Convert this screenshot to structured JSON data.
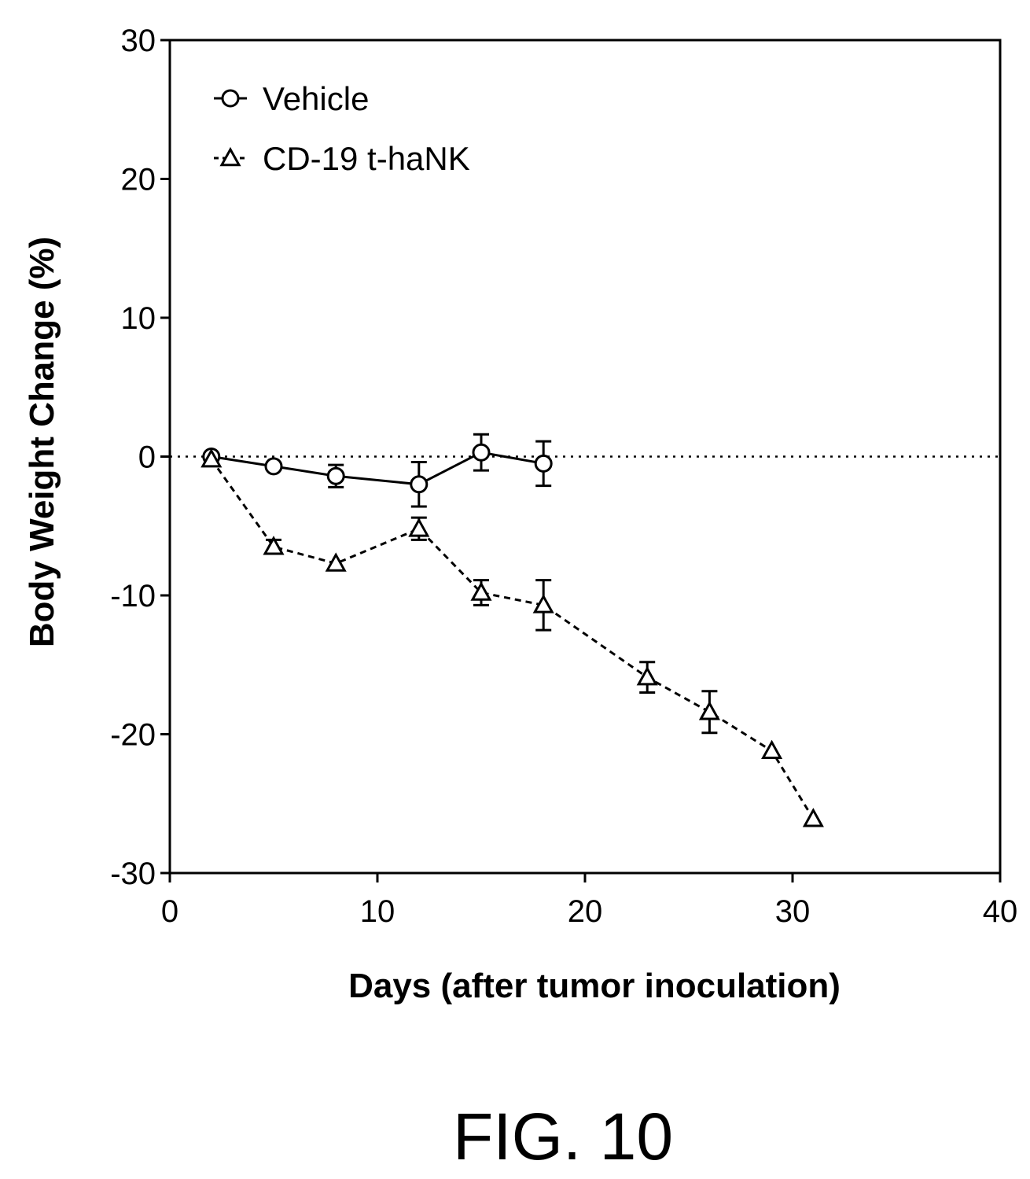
{
  "figure_caption": "FIG. 10",
  "chart_data": {
    "type": "line",
    "xlabel": "Days (after tumor inoculation)",
    "ylabel": "Body Weight Change (%)",
    "xlim": [
      0,
      40
    ],
    "ylim": [
      -30,
      30
    ],
    "xticks": [
      "0",
      "10",
      "20",
      "30",
      "40"
    ],
    "yticks": [
      "30",
      "20",
      "10",
      "0",
      "-10",
      "-20",
      "-30"
    ],
    "reference_line": {
      "y": 0,
      "style": "dotted"
    },
    "legend_position": "top-left",
    "grid": false,
    "series": [
      {
        "name": "Vehicle",
        "marker": "circle",
        "line_style": "solid",
        "x": [
          2,
          5,
          8,
          12,
          15,
          18
        ],
        "y": [
          0,
          -0.7,
          -1.4,
          -2.0,
          0.3,
          -0.5
        ],
        "error": [
          0,
          0,
          0.8,
          1.6,
          1.3,
          1.6
        ]
      },
      {
        "name": "CD-19 t-haNK",
        "marker": "triangle",
        "line_style": "dashed",
        "x": [
          2,
          5,
          8,
          12,
          15,
          18,
          23,
          26,
          29,
          31
        ],
        "y": [
          -0.2,
          -6.5,
          -7.7,
          -5.2,
          -9.8,
          -10.7,
          -15.9,
          -18.4,
          -21.2,
          -26.1
        ],
        "error": [
          0,
          0.5,
          0,
          0.8,
          0.9,
          1.8,
          1.1,
          1.5,
          0,
          0
        ]
      }
    ]
  }
}
